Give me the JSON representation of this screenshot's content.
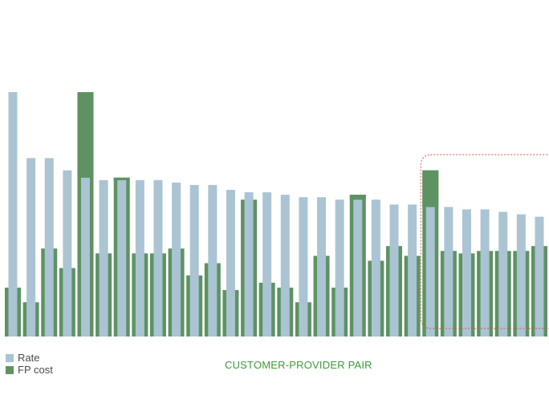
{
  "chart_data": {
    "type": "bar",
    "xlabel": "CUSTOMER-PROVIDER PAIR",
    "ylabel": "",
    "ylim": [
      0,
      100
    ],
    "grid": false,
    "legend_placement": "bottom-left",
    "series": [
      {
        "name": "Rate",
        "color": "#aac4d3",
        "values": [
          100,
          73,
          73,
          68,
          65,
          64,
          64,
          64,
          64,
          63,
          62,
          62,
          60,
          59,
          59,
          58,
          57,
          57,
          56,
          56,
          56,
          54,
          54,
          53,
          53,
          52,
          52,
          51,
          50,
          49,
          48,
          48,
          47,
          47
        ]
      },
      {
        "name": "FP cost",
        "color": "#5e9263",
        "values": [
          20,
          14,
          36,
          28,
          100,
          34,
          65,
          34,
          34,
          36,
          25,
          30,
          19,
          56,
          22,
          20,
          14,
          33,
          20,
          58,
          31,
          37,
          33,
          68,
          35,
          34,
          35,
          35,
          35,
          37,
          35,
          60,
          35,
          32
        ]
      }
    ],
    "highlight_region": {
      "from_index": 23,
      "to_index": 33,
      "style": "dashed-red-rounded"
    }
  }
}
